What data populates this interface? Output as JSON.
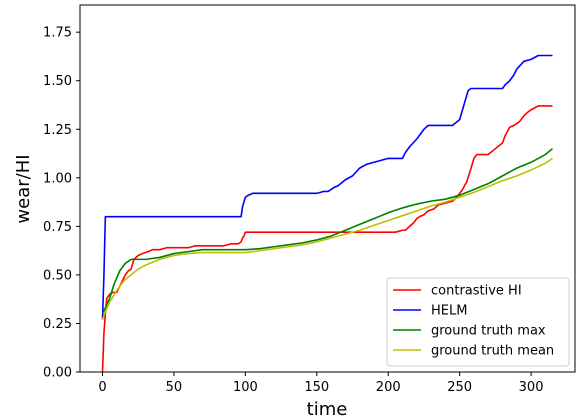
{
  "chart_data": {
    "type": "line",
    "title": "",
    "xlabel": "time",
    "ylabel": "wear/HI",
    "xlim": [
      -15.75,
      330.75
    ],
    "ylim": [
      0,
      1.89
    ],
    "xticks": [
      0,
      50,
      100,
      150,
      200,
      250,
      300
    ],
    "yticks": [
      0.0,
      0.25,
      0.5,
      0.75,
      1.0,
      1.25,
      1.5,
      1.75
    ],
    "xtick_labels": [
      "0",
      "50",
      "100",
      "150",
      "200",
      "250",
      "300"
    ],
    "ytick_labels": [
      "0.00",
      "0.25",
      "0.50",
      "0.75",
      "1.00",
      "1.25",
      "1.50",
      "1.75"
    ],
    "grid": false,
    "legend_position": "lower-right",
    "series": [
      {
        "name": "contrastive HI",
        "color": "#ff0000",
        "x": [
          0,
          1,
          2,
          3,
          5,
          7,
          10,
          12,
          14,
          16,
          18,
          20,
          22,
          25,
          28,
          32,
          35,
          40,
          45,
          50,
          55,
          60,
          65,
          70,
          75,
          80,
          85,
          90,
          95,
          97,
          98,
          99,
          100,
          105,
          120,
          150,
          180,
          200,
          205,
          210,
          212,
          215,
          218,
          220,
          222,
          225,
          228,
          232,
          235,
          240,
          245,
          248,
          250,
          252,
          255,
          258,
          260,
          262,
          265,
          270,
          275,
          280,
          282,
          285,
          288,
          290,
          292,
          295,
          298,
          300,
          305,
          310,
          315
        ],
        "y": [
          0.0,
          0.2,
          0.3,
          0.38,
          0.4,
          0.41,
          0.41,
          0.44,
          0.47,
          0.5,
          0.52,
          0.53,
          0.58,
          0.6,
          0.61,
          0.62,
          0.63,
          0.63,
          0.64,
          0.64,
          0.64,
          0.64,
          0.65,
          0.65,
          0.65,
          0.65,
          0.65,
          0.66,
          0.66,
          0.67,
          0.69,
          0.7,
          0.72,
          0.72,
          0.72,
          0.72,
          0.72,
          0.72,
          0.72,
          0.73,
          0.73,
          0.75,
          0.77,
          0.79,
          0.8,
          0.81,
          0.83,
          0.84,
          0.86,
          0.87,
          0.88,
          0.9,
          0.92,
          0.94,
          0.98,
          1.05,
          1.1,
          1.12,
          1.12,
          1.12,
          1.15,
          1.18,
          1.22,
          1.26,
          1.27,
          1.28,
          1.29,
          1.32,
          1.34,
          1.35,
          1.37,
          1.37,
          1.37
        ]
      },
      {
        "name": "HELM",
        "color": "#0000ff",
        "x": [
          0,
          1,
          2,
          3,
          4,
          10,
          50,
          97,
          98,
          100,
          102,
          105,
          110,
          115,
          150,
          155,
          158,
          160,
          162,
          165,
          170,
          175,
          180,
          185,
          190,
          195,
          200,
          205,
          210,
          212,
          215,
          220,
          225,
          228,
          230,
          235,
          240,
          245,
          250,
          252,
          254,
          256,
          258,
          260,
          270,
          280,
          282,
          285,
          288,
          290,
          295,
          300,
          305,
          315
        ],
        "y": [
          0.27,
          0.5,
          0.8,
          0.8,
          0.8,
          0.8,
          0.8,
          0.8,
          0.85,
          0.9,
          0.91,
          0.92,
          0.92,
          0.92,
          0.92,
          0.93,
          0.93,
          0.94,
          0.95,
          0.96,
          0.99,
          1.01,
          1.05,
          1.07,
          1.08,
          1.09,
          1.1,
          1.1,
          1.1,
          1.13,
          1.16,
          1.2,
          1.25,
          1.27,
          1.27,
          1.27,
          1.27,
          1.27,
          1.3,
          1.35,
          1.4,
          1.45,
          1.46,
          1.46,
          1.46,
          1.46,
          1.48,
          1.5,
          1.53,
          1.56,
          1.6,
          1.61,
          1.63,
          1.63
        ]
      },
      {
        "name": "ground truth max",
        "color": "#008000",
        "x": [
          0,
          2,
          5,
          8,
          12,
          16,
          20,
          25,
          30,
          40,
          50,
          60,
          70,
          80,
          90,
          100,
          110,
          120,
          130,
          140,
          150,
          160,
          170,
          180,
          190,
          200,
          210,
          220,
          230,
          240,
          250,
          260,
          270,
          280,
          290,
          300,
          310,
          315
        ],
        "y": [
          0.3,
          0.33,
          0.38,
          0.45,
          0.52,
          0.56,
          0.58,
          0.58,
          0.58,
          0.59,
          0.61,
          0.62,
          0.63,
          0.63,
          0.63,
          0.63,
          0.635,
          0.645,
          0.655,
          0.665,
          0.68,
          0.7,
          0.73,
          0.76,
          0.79,
          0.82,
          0.845,
          0.865,
          0.88,
          0.89,
          0.91,
          0.94,
          0.97,
          1.01,
          1.05,
          1.08,
          1.12,
          1.15
        ]
      },
      {
        "name": "ground truth mean",
        "color": "#bfbf00",
        "x": [
          0,
          2,
          5,
          10,
          15,
          20,
          25,
          30,
          40,
          50,
          60,
          70,
          80,
          90,
          100,
          110,
          120,
          130,
          140,
          150,
          160,
          170,
          180,
          190,
          200,
          210,
          220,
          230,
          240,
          250,
          260,
          270,
          280,
          290,
          300,
          310,
          315
        ],
        "y": [
          0.27,
          0.31,
          0.36,
          0.42,
          0.47,
          0.5,
          0.53,
          0.55,
          0.58,
          0.6,
          0.61,
          0.615,
          0.615,
          0.615,
          0.615,
          0.625,
          0.635,
          0.645,
          0.655,
          0.67,
          0.69,
          0.71,
          0.73,
          0.755,
          0.78,
          0.805,
          0.83,
          0.855,
          0.875,
          0.9,
          0.925,
          0.955,
          0.985,
          1.01,
          1.04,
          1.075,
          1.1
        ]
      }
    ]
  }
}
